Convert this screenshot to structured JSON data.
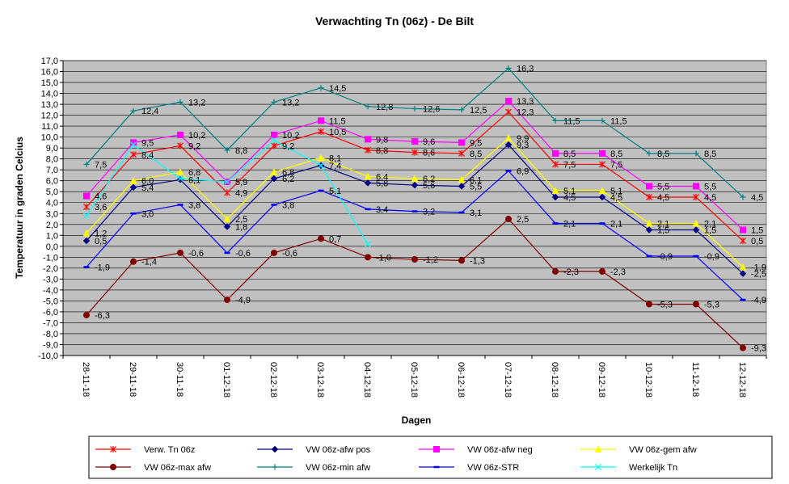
{
  "chart_data": {
    "type": "line",
    "title": "Verwachting Tn (06z) - De Bilt",
    "xlabel": "Dagen",
    "ylabel": "Temperatuur in graden Celcius",
    "ylim": [
      -10,
      17
    ],
    "ytick_step": 1,
    "grid": true,
    "plot_bg": "#c0c0c0",
    "categories": [
      "28-11-18",
      "29-11-18",
      "30-11-18",
      "01-12-18",
      "02-12-18",
      "03-12-18",
      "04-12-18",
      "05-12-18",
      "06-12-18",
      "07-12-18",
      "08-12-18",
      "09-12-18",
      "10-12-18",
      "11-12-18",
      "12-12-18"
    ],
    "series": [
      {
        "name": "Verw. Tn 06z",
        "color": "#ff0000",
        "marker": "star",
        "labels": true,
        "values": [
          3.6,
          8.4,
          9.2,
          4.9,
          9.2,
          10.5,
          8.8,
          8.6,
          8.5,
          12.3,
          7.5,
          7.5,
          4.5,
          4.5,
          0.5
        ]
      },
      {
        "name": "VW 06z-afw pos",
        "color": "#000080",
        "marker": "diamond",
        "labels": true,
        "values": [
          0.5,
          5.4,
          6.1,
          1.8,
          6.2,
          7.4,
          5.8,
          5.6,
          5.5,
          9.3,
          4.5,
          4.5,
          1.5,
          1.5,
          -2.5
        ]
      },
      {
        "name": "VW 06z-afw neg",
        "color": "#ff00ff",
        "marker": "square",
        "labels": true,
        "values": [
          4.6,
          9.5,
          10.2,
          5.9,
          10.2,
          11.5,
          9.8,
          9.6,
          9.5,
          13.3,
          8.5,
          8.5,
          5.5,
          5.5,
          1.5
        ]
      },
      {
        "name": "VW 06z-gem afw",
        "color": "#ffff00",
        "marker": "triangle",
        "labels": true,
        "values": [
          1.2,
          6.0,
          6.8,
          2.5,
          6.8,
          8.1,
          6.4,
          6.2,
          6.1,
          9.9,
          5.1,
          5.1,
          2.1,
          2.1,
          -1.9
        ]
      },
      {
        "name": "VW 06z-max afw",
        "color": "#800000",
        "marker": "circle",
        "labels": true,
        "values": [
          -6.3,
          -1.4,
          -0.6,
          -4.9,
          -0.6,
          0.7,
          -1.0,
          -1.2,
          -1.3,
          2.5,
          -2.3,
          -2.3,
          -5.3,
          -5.3,
          -9.3
        ]
      },
      {
        "name": "VW 06z-min afw",
        "color": "#008080",
        "marker": "plus",
        "labels": true,
        "values": [
          7.5,
          12.4,
          13.2,
          8.8,
          13.2,
          14.5,
          12.8,
          12.6,
          12.5,
          16.3,
          11.5,
          11.5,
          8.5,
          8.5,
          4.5
        ]
      },
      {
        "name": "VW 06z-STR",
        "color": "#0000ff",
        "marker": "dash",
        "labels": true,
        "values": [
          -1.9,
          3.0,
          3.8,
          -0.6,
          3.8,
          5.1,
          3.4,
          3.2,
          3.1,
          6.9,
          2.1,
          2.1,
          -0.9,
          -0.9,
          -4.9
        ]
      },
      {
        "name": "Werkelijk Tn",
        "color": "#00ffff",
        "marker": "x",
        "labels": false,
        "values": [
          2.8,
          9.3,
          6.2,
          5.9,
          9.7,
          7.4,
          0.2,
          null,
          null,
          null,
          null,
          null,
          null,
          null,
          null
        ]
      }
    ]
  }
}
